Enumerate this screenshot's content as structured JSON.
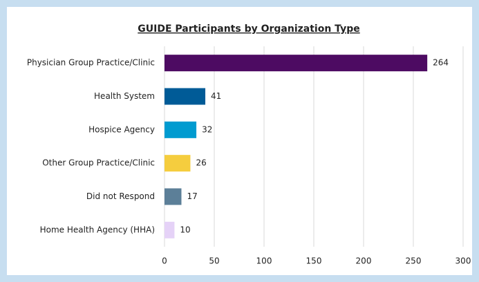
{
  "chart_data": {
    "type": "bar",
    "orientation": "horizontal",
    "title": "GUIDE Participants by Organization Type",
    "categories": [
      "Physician Group Practice/Clinic",
      "Health System",
      "Hospice Agency",
      "Other Group Practice/Clinic",
      "Did not Respond",
      "Home Health Agency (HHA)"
    ],
    "values": [
      264,
      41,
      32,
      26,
      17,
      10
    ],
    "colors": [
      "#4d0b62",
      "#005b97",
      "#009bd0",
      "#f5cd3e",
      "#5c7f98",
      "#e5d2f7"
    ],
    "xlim": [
      0,
      300
    ],
    "xticks": [
      0,
      50,
      100,
      150,
      200,
      250,
      300
    ],
    "grid": true
  }
}
